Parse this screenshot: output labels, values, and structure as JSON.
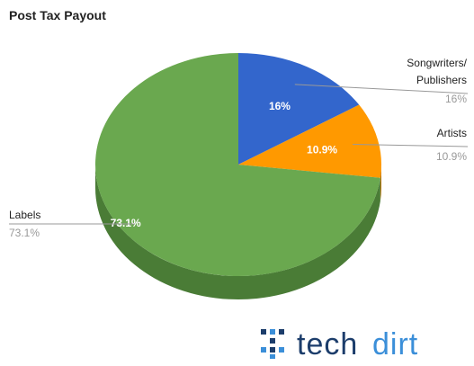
{
  "chart_data": {
    "type": "pie",
    "title": "Post Tax Payout",
    "three_d": true,
    "slices": [
      {
        "label": "Songwriters/ Publishers",
        "label_lines": [
          "Songwriters/",
          "Publishers"
        ],
        "value": 16,
        "display": "16%",
        "color": "#3366cc",
        "side_color": "#244a95",
        "legend_side": "right"
      },
      {
        "label": "Artists",
        "label_lines": [
          "Artists"
        ],
        "value": 10.9,
        "display": "10.9%",
        "color": "#ff9900",
        "side_color": "#b86e00",
        "legend_side": "right"
      },
      {
        "label": "Labels",
        "label_lines": [
          "Labels"
        ],
        "value": 73.1,
        "display": "73.1%",
        "color": "#6aa84f",
        "side_color": "#4a7c36",
        "legend_side": "left"
      }
    ]
  },
  "watermark": {
    "logo_text": "techdirt",
    "brand_colors": {
      "dark": "#1c3d6b",
      "accent": "#3b8fd9"
    }
  }
}
